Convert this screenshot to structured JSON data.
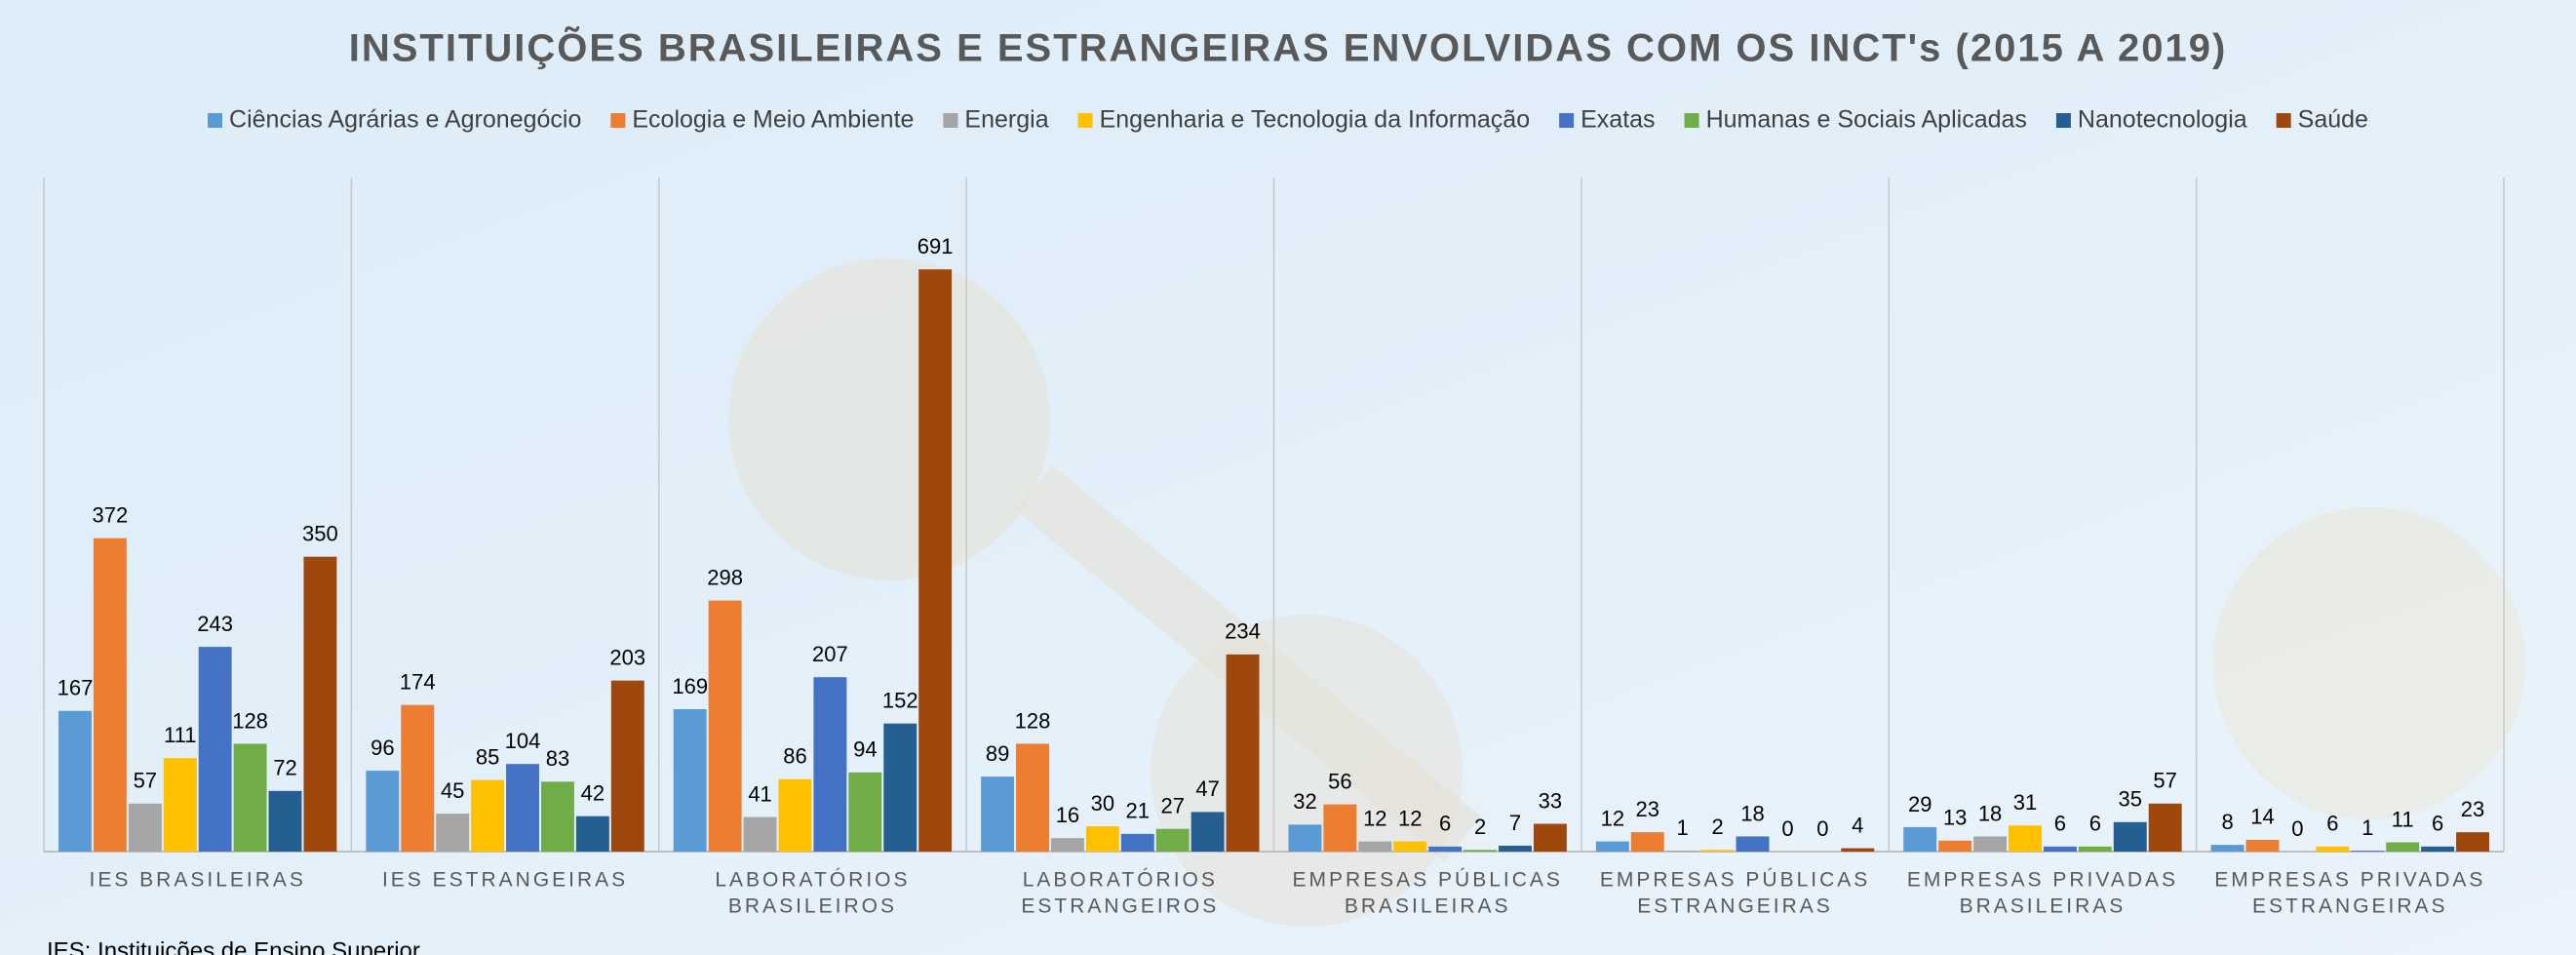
{
  "chart_data": {
    "type": "bar",
    "title": "INSTITUIÇÕES BRASILEIRAS E ESTRANGEIRAS ENVOLVIDAS COM OS INCT's (2015 A 2019)",
    "categories": [
      [
        "IES BRASILEIRAS"
      ],
      [
        "IES ESTRANGEIRAS"
      ],
      [
        "LABORATÓRIOS",
        "BRASILEIROS"
      ],
      [
        "LABORATÓRIOS",
        "ESTRANGEIROS"
      ],
      [
        "EMPRESAS PÚBLICAS",
        "BRASILEIRAS"
      ],
      [
        "EMPRESAS PÚBLICAS",
        "ESTRANGEIRAS"
      ],
      [
        "EMPRESAS PRIVADAS",
        "BRASILEIRAS"
      ],
      [
        "EMPRESAS PRIVADAS",
        "ESTRANGEIRAS"
      ]
    ],
    "series": [
      {
        "name": "Ciências Agrárias e Agronegócio",
        "color": "#5b9bd5",
        "values": [
          167,
          96,
          169,
          89,
          32,
          12,
          29,
          8
        ]
      },
      {
        "name": "Ecologia e Meio Ambiente",
        "color": "#ed7d31",
        "values": [
          372,
          174,
          298,
          128,
          56,
          23,
          13,
          14
        ]
      },
      {
        "name": "Energia",
        "color": "#a5a5a5",
        "values": [
          57,
          45,
          41,
          16,
          12,
          1,
          18,
          0
        ]
      },
      {
        "name": "Engenharia e Tecnologia da Informação",
        "color": "#ffc000",
        "values": [
          111,
          85,
          86,
          30,
          12,
          2,
          31,
          6
        ]
      },
      {
        "name": "Exatas",
        "color": "#4472c4",
        "values": [
          243,
          104,
          207,
          21,
          6,
          18,
          6,
          1
        ]
      },
      {
        "name": "Humanas e Sociais Aplicadas",
        "color": "#70ad47",
        "values": [
          128,
          83,
          94,
          27,
          2,
          0,
          6,
          11
        ]
      },
      {
        "name": "Nanotecnologia",
        "color": "#255e91",
        "values": [
          72,
          42,
          152,
          47,
          7,
          0,
          35,
          6
        ]
      },
      {
        "name": "Saúde",
        "color": "#9e480e",
        "values": [
          350,
          203,
          691,
          234,
          33,
          4,
          57,
          23
        ]
      }
    ],
    "ylim": [
      0,
      800
    ],
    "note": "IES: Instituições de Ensino Superior"
  }
}
